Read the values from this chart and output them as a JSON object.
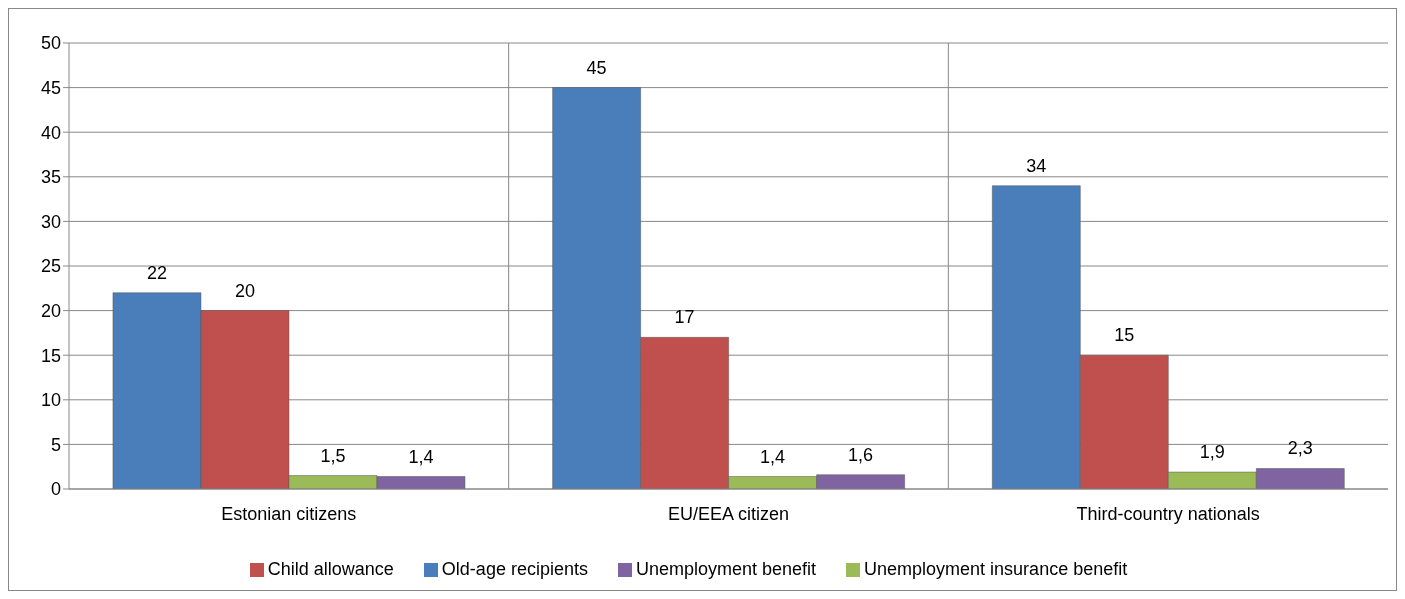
{
  "chart_data": {
    "type": "bar",
    "categories": [
      "Estonian citizens",
      "EU/EEA citizen",
      "Third-country nationals"
    ],
    "series": [
      {
        "name": "Old-age recipients",
        "color": "#4a7ebb",
        "values": [
          22,
          45,
          34
        ],
        "value_labels": [
          "22",
          "45",
          "34"
        ]
      },
      {
        "name": "Child allowance",
        "color": "#c0504d",
        "values": [
          20,
          17,
          15
        ],
        "value_labels": [
          "20",
          "17",
          "15"
        ]
      },
      {
        "name": "Unemployment insurance benefit",
        "color": "#9bbb59",
        "values": [
          1.5,
          1.4,
          1.9
        ],
        "value_labels": [
          "1,5",
          "1,4",
          "1,9"
        ]
      },
      {
        "name": "Unemployment benefit",
        "color": "#8064a2",
        "values": [
          1.4,
          1.6,
          2.3
        ],
        "value_labels": [
          "1,4",
          "1,6",
          "2,3"
        ]
      }
    ],
    "ylim": [
      0,
      50
    ],
    "yticks": [
      0,
      5,
      10,
      15,
      20,
      25,
      30,
      35,
      40,
      45,
      50
    ],
    "grid": true,
    "legend": "bottom"
  }
}
